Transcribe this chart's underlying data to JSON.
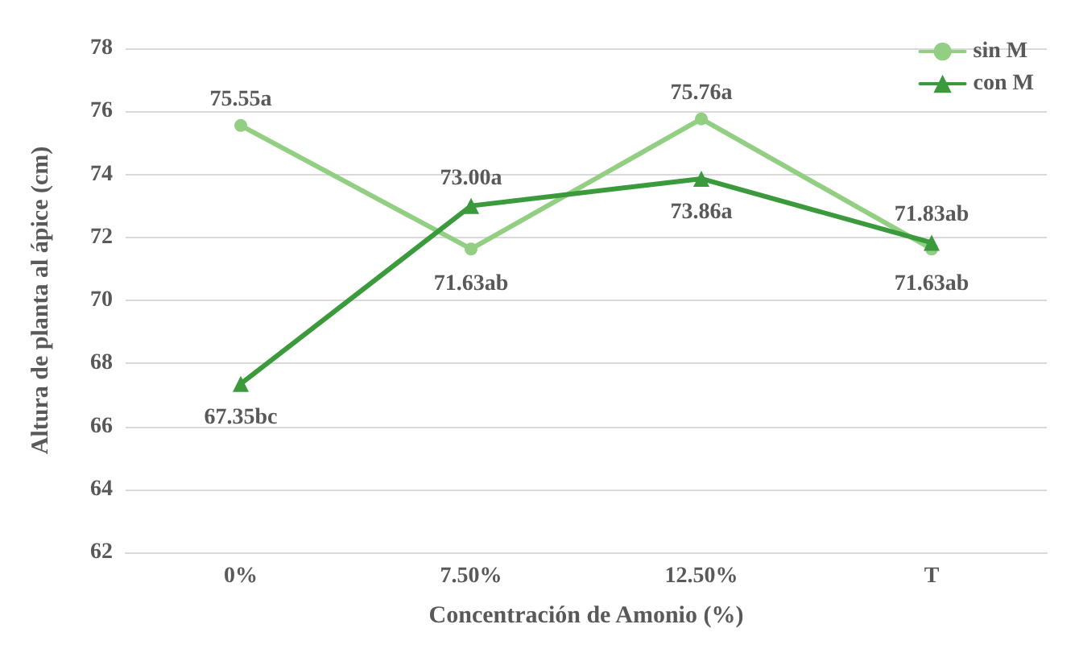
{
  "chart_data": {
    "type": "line",
    "xlabel": "Concentración de Amonio (%)",
    "ylabel": "Altura de planta al ápice (cm)",
    "categories": [
      "0%",
      "7.50%",
      "12.50%",
      "T"
    ],
    "series": [
      {
        "name": "sin M",
        "color": "#92cf82",
        "marker": "circle",
        "values": [
          75.55,
          71.63,
          75.76,
          71.63
        ],
        "value_labels": [
          "75.55a",
          "71.63ab",
          "75.76a",
          "71.63ab"
        ]
      },
      {
        "name": "con M",
        "color": "#3a9a3c",
        "marker": "triangle",
        "values": [
          67.35,
          73.0,
          73.86,
          71.83
        ],
        "value_labels": [
          "67.35bc",
          "73.00a",
          "73.86a",
          "71.83ab"
        ]
      }
    ],
    "ylim": [
      62,
      78
    ],
    "yticks": [
      62,
      64,
      66,
      68,
      70,
      72,
      74,
      76,
      78
    ],
    "grid": "y",
    "legend": "top right",
    "line_style": "solid"
  }
}
